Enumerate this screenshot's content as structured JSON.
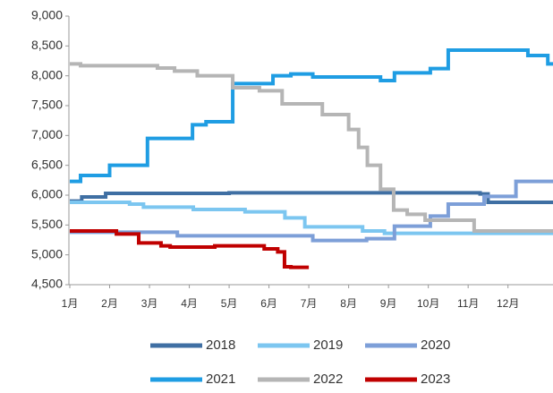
{
  "chart_data": {
    "type": "line",
    "step": true,
    "xlim": [
      1,
      13.13
    ],
    "xticks": [
      {
        "value": 1,
        "label": "1月"
      },
      {
        "value": 2,
        "label": "2月"
      },
      {
        "value": 3,
        "label": "3月"
      },
      {
        "value": 4,
        "label": "4月"
      },
      {
        "value": 5,
        "label": "5月"
      },
      {
        "value": 6,
        "label": "6月"
      },
      {
        "value": 7,
        "label": "7月"
      },
      {
        "value": 8,
        "label": "8月"
      },
      {
        "value": 9,
        "label": "9月"
      },
      {
        "value": 10,
        "label": "10月"
      },
      {
        "value": 11,
        "label": "11月"
      },
      {
        "value": 12,
        "label": "12月"
      }
    ],
    "ylim": [
      4500,
      9000
    ],
    "yticks": [
      {
        "value": 4500,
        "label": "4,500"
      },
      {
        "value": 5000,
        "label": "5,000"
      },
      {
        "value": 5500,
        "label": "5,500"
      },
      {
        "value": 6000,
        "label": "6,000"
      },
      {
        "value": 6500,
        "label": "6,500"
      },
      {
        "value": 7000,
        "label": "7,000"
      },
      {
        "value": 7500,
        "label": "7,500"
      },
      {
        "value": 8000,
        "label": "8,000"
      },
      {
        "value": 8500,
        "label": "8,500"
      },
      {
        "value": 9000,
        "label": "9,000"
      }
    ],
    "series": [
      {
        "name": "2018",
        "color": "#3f6fa3",
        "x": [
          1,
          1.3,
          1.9,
          5,
          9,
          11.3,
          11.5,
          13.13
        ],
        "values": [
          5900,
          5970,
          6030,
          6040,
          6040,
          6020,
          5880,
          5880
        ]
      },
      {
        "name": "2019",
        "color": "#7cc6f0",
        "x": [
          1,
          2.5,
          2.85,
          4.1,
          5.4,
          6.4,
          6.9,
          8.35,
          8.9,
          13.13
        ],
        "values": [
          5880,
          5850,
          5800,
          5760,
          5720,
          5620,
          5470,
          5400,
          5360,
          5360
        ]
      },
      {
        "name": "2020",
        "color": "#7d9fd8",
        "x": [
          1,
          3.7,
          7.1,
          8.45,
          9.15,
          10.05,
          10.5,
          11.4,
          12.2,
          13.13
        ],
        "values": [
          5380,
          5320,
          5240,
          5270,
          5480,
          5650,
          5850,
          5980,
          6230,
          6230
        ]
      },
      {
        "name": "2021",
        "color": "#1f9de3",
        "x": [
          1,
          1.27,
          2.0,
          2.95,
          4.08,
          4.42,
          5.09,
          6.1,
          6.55,
          7.1,
          8.8,
          9.15,
          10.05,
          10.5,
          12.5,
          13.0,
          13.13
        ],
        "values": [
          6230,
          6330,
          6500,
          6950,
          7180,
          7230,
          7870,
          8000,
          8030,
          7980,
          7920,
          8050,
          8120,
          8430,
          8340,
          8200,
          8200
        ]
      },
      {
        "name": "2022",
        "color": "#b5b5b5",
        "x": [
          1,
          1.27,
          3.2,
          3.63,
          4.2,
          5.09,
          5.76,
          6.33,
          7.34,
          8.0,
          8.25,
          8.47,
          8.8,
          9.13,
          9.47,
          9.92,
          11.15,
          11.38,
          13.13
        ],
        "values": [
          8200,
          8170,
          8130,
          8080,
          8000,
          7800,
          7750,
          7530,
          7350,
          7100,
          6800,
          6500,
          6100,
          5750,
          5680,
          5580,
          5400,
          5400,
          5400
        ]
      },
      {
        "name": "2023",
        "color": "#c00000",
        "x": [
          1,
          2.17,
          2.73,
          3.29,
          3.52,
          4.64,
          5.88,
          6.22,
          6.39,
          6.55,
          7.0
        ],
        "values": [
          5400,
          5350,
          5200,
          5150,
          5130,
          5150,
          5100,
          5050,
          4800,
          4790,
          4790
        ]
      }
    ]
  }
}
